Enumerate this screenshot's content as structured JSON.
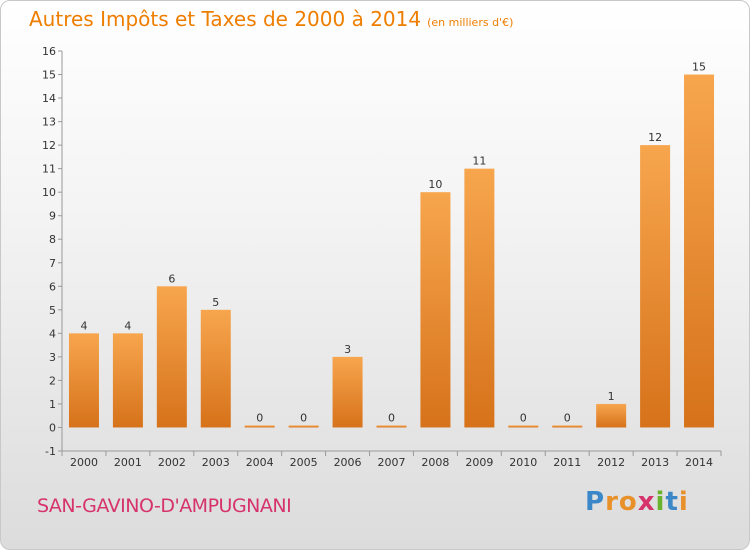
{
  "chart_data": {
    "type": "bar",
    "title": "Autres Impôts et Taxes de 2000 à 2014",
    "subtitle": "(en milliers d'€)",
    "categories": [
      "2000",
      "2001",
      "2002",
      "2003",
      "2004",
      "2005",
      "2006",
      "2007",
      "2008",
      "2009",
      "2010",
      "2011",
      "2012",
      "2013",
      "2014"
    ],
    "values": [
      4,
      4,
      6,
      5,
      0,
      0,
      3,
      0,
      10,
      11,
      0,
      0,
      1,
      12,
      15
    ],
    "ylim": [
      -1,
      16
    ],
    "yticks": [
      -1,
      0,
      1,
      2,
      3,
      4,
      5,
      6,
      7,
      8,
      9,
      10,
      11,
      12,
      13,
      14,
      15,
      16
    ],
    "grid": false,
    "xlabel": "",
    "ylabel": ""
  },
  "footer": {
    "commune": "SAN-GAVINO-D'AMPUGNANI",
    "logo_letters": [
      "P",
      "r",
      "o",
      "x",
      "i",
      "t",
      "i"
    ],
    "logo_colors": [
      "#3b87c8",
      "#e8902a",
      "#e8902a",
      "#d6336c",
      "#6ab42d",
      "#3b87c8",
      "#e8902a"
    ]
  },
  "colors": {
    "bar_light": "#f7a64e",
    "bar_dark": "#d6721a",
    "title": "#ee7e00"
  }
}
